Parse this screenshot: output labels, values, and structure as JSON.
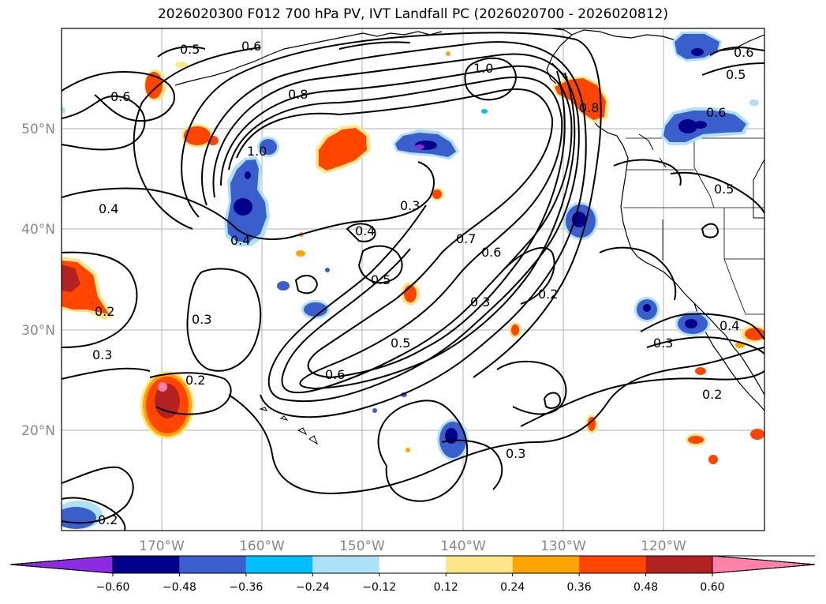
{
  "title": "2026020300 F012 700 hPa PV, IVT Landfall PC (2026020700 - 2026020812)",
  "axes": {
    "lat_labels": [
      "50°N",
      "40°N",
      "30°N",
      "20°N"
    ],
    "lon_labels": [
      "170°W",
      "160°W",
      "150°W",
      "140°W",
      "130°W",
      "120°W"
    ]
  },
  "contour_labels": [
    "0.5",
    "0.6",
    "0.6",
    "0.6",
    "0.5",
    "1.0",
    "0.8",
    "0.8",
    "0.6",
    "1.0",
    "0.4",
    "0.3",
    "0.4",
    "0.5",
    "0.7",
    "0.6",
    "0.4",
    "0.2",
    "0.3",
    "0.3",
    "0.2",
    "0.3",
    "0.5",
    "0.6",
    "0.2",
    "0.3",
    "0.4",
    "0.3",
    "0.2",
    "0.5",
    "0.2"
  ],
  "colorbar": {
    "ticks": [
      "−0.60",
      "−0.48",
      "−0.36",
      "−0.24",
      "−0.12",
      "0.12",
      "0.24",
      "0.36",
      "0.48",
      "0.60"
    ],
    "colors": [
      "#8b2be2",
      "#00008b",
      "#3a5fcd",
      "#00bfff",
      "#aee0f8",
      "#ffffff",
      "#fde68a",
      "#ffa500",
      "#ff4500",
      "#b22222",
      "#ff82ab"
    ]
  }
}
